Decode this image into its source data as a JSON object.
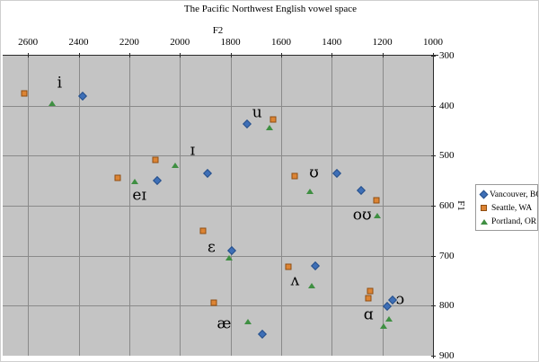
{
  "chart_data": {
    "type": "scatter",
    "title": "The Pacific Northwest English vowel space",
    "xlabel": "F2",
    "ylabel": "F1",
    "x_axis": {
      "min": 1000,
      "max": 2700,
      "reversed": true,
      "ticks": [
        2600,
        2400,
        2200,
        2000,
        1800,
        1600,
        1400,
        1200,
        1000
      ]
    },
    "y_axis": {
      "min": 300,
      "max": 900,
      "reversed": true,
      "ticks": [
        300,
        400,
        500,
        600,
        700,
        800,
        900
      ]
    },
    "grid": true,
    "plot_background": "#c4c4c4",
    "legend_position": "right",
    "series": [
      {
        "name": "Vancouver, BC",
        "marker": "diamond",
        "color": "#3e6fb7",
        "border": "#27508a",
        "points": [
          {
            "vowel": "i",
            "f2": 2385,
            "f1": 381
          },
          {
            "vowel": "ɪ",
            "f2": 1890,
            "f1": 536
          },
          {
            "vowel": "eɪ",
            "f2": 2090,
            "f1": 550
          },
          {
            "vowel": "u",
            "f2": 1735,
            "f1": 437
          },
          {
            "vowel": "ʊ",
            "f2": 1380,
            "f1": 536
          },
          {
            "vowel": "oʊ",
            "f2": 1285,
            "f1": 570
          },
          {
            "vowel": "ɛ",
            "f2": 1795,
            "f1": 689
          },
          {
            "vowel": "ʌ",
            "f2": 1465,
            "f1": 720
          },
          {
            "vowel": "æ",
            "f2": 1675,
            "f1": 857
          },
          {
            "vowel": "ɑ",
            "f2": 1180,
            "f1": 801
          },
          {
            "vowel": "ɔ",
            "f2": 1160,
            "f1": 788
          }
        ]
      },
      {
        "name": "Seattle, WA",
        "marker": "square",
        "color": "#dc8434",
        "border": "#8f4e12",
        "points": [
          {
            "vowel": "i",
            "f2": 2615,
            "f1": 376
          },
          {
            "vowel": "ɪ",
            "f2": 2095,
            "f1": 509
          },
          {
            "vowel": "eɪ",
            "f2": 2245,
            "f1": 545
          },
          {
            "vowel": "u",
            "f2": 1630,
            "f1": 428
          },
          {
            "vowel": "ʊ",
            "f2": 1545,
            "f1": 540
          },
          {
            "vowel": "oʊ",
            "f2": 1225,
            "f1": 590
          },
          {
            "vowel": "ɛ",
            "f2": 1910,
            "f1": 650
          },
          {
            "vowel": "ʌ",
            "f2": 1570,
            "f1": 722
          },
          {
            "vowel": "æ",
            "f2": 1865,
            "f1": 794
          },
          {
            "vowel": "ɑ",
            "f2": 1255,
            "f1": 785
          },
          {
            "vowel": "ɔ",
            "f2": 1250,
            "f1": 770
          }
        ]
      },
      {
        "name": "Portland, OR",
        "marker": "triangle",
        "color": "#3f8f42",
        "border": "#245a26",
        "points": [
          {
            "vowel": "i",
            "f2": 2505,
            "f1": 395
          },
          {
            "vowel": "ɪ",
            "f2": 2020,
            "f1": 520
          },
          {
            "vowel": "eɪ",
            "f2": 2180,
            "f1": 552
          },
          {
            "vowel": "u",
            "f2": 1645,
            "f1": 444
          },
          {
            "vowel": "ʊ",
            "f2": 1485,
            "f1": 572
          },
          {
            "vowel": "oʊ",
            "f2": 1220,
            "f1": 619
          },
          {
            "vowel": "ɛ",
            "f2": 1805,
            "f1": 705
          },
          {
            "vowel": "ʌ",
            "f2": 1480,
            "f1": 759
          },
          {
            "vowel": "æ",
            "f2": 1730,
            "f1": 832
          },
          {
            "vowel": "ɑ",
            "f2": 1195,
            "f1": 841
          },
          {
            "vowel": "ɔ",
            "f2": 1175,
            "f1": 826
          }
        ]
      }
    ],
    "vowel_labels": [
      {
        "text": "i",
        "f2": 2475,
        "f1": 356
      },
      {
        "text": "ɪ",
        "f2": 1950,
        "f1": 491
      },
      {
        "text": "eɪ",
        "f2": 2160,
        "f1": 580
      },
      {
        "text": "u",
        "f2": 1695,
        "f1": 415
      },
      {
        "text": "ʊ",
        "f2": 1470,
        "f1": 536
      },
      {
        "text": "oʊ",
        "f2": 1280,
        "f1": 620
      },
      {
        "text": "ɛ",
        "f2": 1875,
        "f1": 685
      },
      {
        "text": "ʌ",
        "f2": 1545,
        "f1": 750
      },
      {
        "text": "æ",
        "f2": 1825,
        "f1": 838
      },
      {
        "text": "ɑ",
        "f2": 1255,
        "f1": 820
      },
      {
        "text": "ɔ",
        "f2": 1130,
        "f1": 788
      }
    ]
  }
}
